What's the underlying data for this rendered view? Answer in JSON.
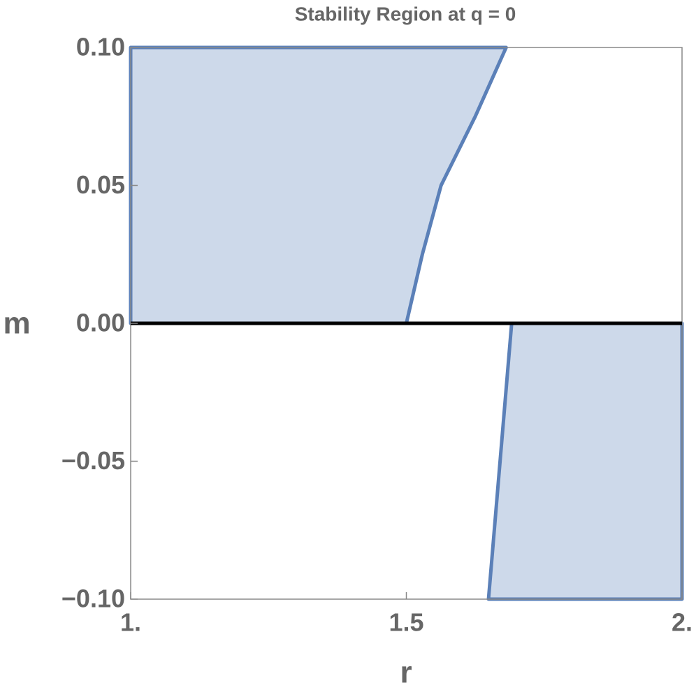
{
  "chart_data": {
    "type": "region",
    "title": "Stability Region at q = 0",
    "xlabel": "r",
    "ylabel": "m",
    "xlim": [
      1,
      2
    ],
    "ylim": [
      -0.1,
      0.1
    ],
    "xticks": [
      {
        "value": 1,
        "label": "1."
      },
      1.5,
      {
        "value": 2,
        "label": "2."
      }
    ],
    "yticks": [
      {
        "value": 0.1,
        "label": "0.10"
      },
      {
        "value": 0.05,
        "label": "0.05"
      },
      {
        "value": 0,
        "label": "0.00"
      },
      {
        "value": -0.05,
        "label": "−0.05"
      },
      {
        "value": -0.1,
        "label": "−0.10"
      }
    ],
    "zero_line": true,
    "regions": [
      {
        "color": "#5b80b8",
        "x": [
          1,
          1,
          1.681,
          1.625,
          1.563,
          1.529,
          1.5
        ],
        "y": [
          0,
          0.1,
          0.1,
          0.075,
          0.05,
          0.025,
          0
        ]
      },
      {
        "color": "#5b80b8",
        "x": [
          1.649,
          1.691,
          2,
          2
        ],
        "y": [
          -0.1,
          0,
          0,
          -0.1
        ]
      }
    ]
  }
}
